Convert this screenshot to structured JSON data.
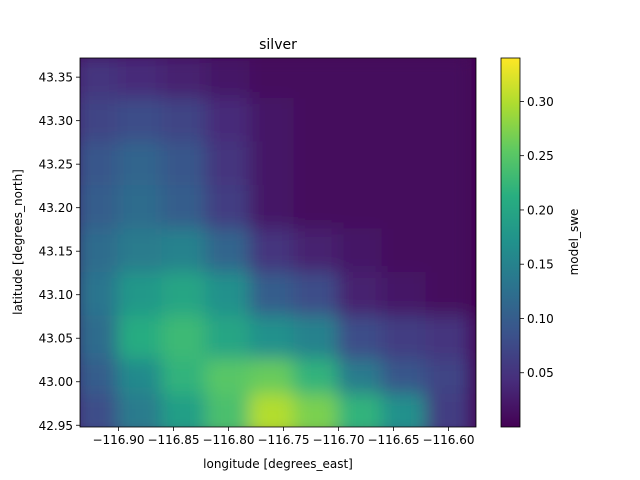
{
  "chart_data": {
    "type": "heatmap",
    "title": "silver",
    "xlabel": "longitude [degrees_east]",
    "ylabel": "latitude [degrees_north]",
    "colorbar_label": "model_swe",
    "colormap": "viridis",
    "xlim": [
      -116.935,
      -116.575
    ],
    "ylim": [
      42.948,
      43.372
    ],
    "clim": [
      0.0,
      0.34
    ],
    "xticks": [
      -116.9,
      -116.85,
      -116.8,
      -116.75,
      -116.7,
      -116.65,
      -116.6
    ],
    "xtick_labels": [
      "−116.90",
      "−116.85",
      "−116.80",
      "−116.75",
      "−116.70",
      "−116.65",
      "−116.60"
    ],
    "yticks": [
      42.95,
      43.0,
      43.05,
      43.1,
      43.15,
      43.2,
      43.25,
      43.3,
      43.35
    ],
    "ytick_labels": [
      "42.95",
      "43.00",
      "43.05",
      "43.10",
      "43.15",
      "43.20",
      "43.25",
      "43.30",
      "43.35"
    ],
    "colorbar_ticks": [
      0.05,
      0.1,
      0.15,
      0.2,
      0.25,
      0.3
    ],
    "colorbar_tick_labels": [
      "0.05",
      "0.10",
      "0.15",
      "0.20",
      "0.25",
      "0.30"
    ],
    "grid_lat": [
      43.35,
      43.3,
      43.25,
      43.2,
      43.15,
      43.1,
      43.05,
      43.0,
      42.96
    ],
    "grid_lon": [
      -116.92,
      -116.88,
      -116.84,
      -116.8,
      -116.76,
      -116.72,
      -116.68,
      -116.64,
      -116.6
    ],
    "values": [
      [
        0.05,
        0.04,
        0.03,
        0.02,
        0.01,
        0.01,
        0.01,
        0.01,
        0.01
      ],
      [
        0.07,
        0.08,
        0.07,
        0.04,
        0.02,
        0.01,
        0.01,
        0.01,
        0.01
      ],
      [
        0.09,
        0.11,
        0.09,
        0.05,
        0.02,
        0.01,
        0.01,
        0.01,
        0.01
      ],
      [
        0.1,
        0.12,
        0.1,
        0.06,
        0.02,
        0.01,
        0.01,
        0.01,
        0.01
      ],
      [
        0.12,
        0.14,
        0.15,
        0.11,
        0.05,
        0.03,
        0.02,
        0.01,
        0.01
      ],
      [
        0.13,
        0.18,
        0.2,
        0.17,
        0.1,
        0.08,
        0.03,
        0.02,
        0.01
      ],
      [
        0.12,
        0.21,
        0.23,
        0.2,
        0.17,
        0.15,
        0.08,
        0.06,
        0.05
      ],
      [
        0.1,
        0.16,
        0.22,
        0.25,
        0.26,
        0.22,
        0.14,
        0.09,
        0.07
      ],
      [
        0.08,
        0.14,
        0.19,
        0.24,
        0.3,
        0.27,
        0.22,
        0.17,
        0.06
      ]
    ]
  }
}
